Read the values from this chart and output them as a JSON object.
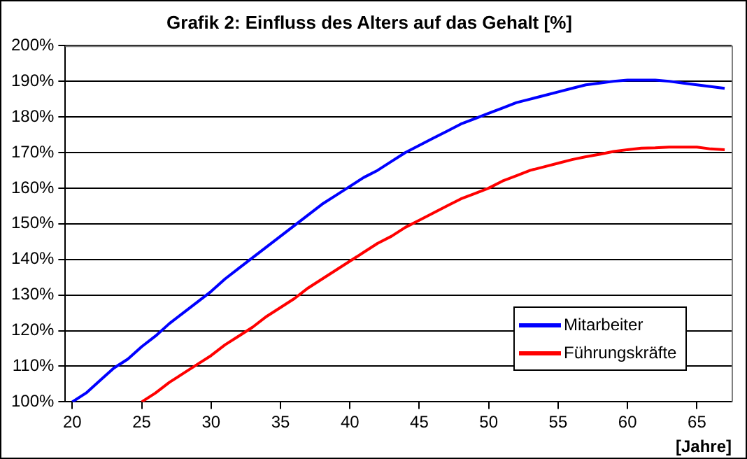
{
  "chart_data": {
    "type": "line",
    "title": "Grafik 2: Einfluss des Alters auf das Gehalt [%]",
    "xlabel": "[Jahre]",
    "x": [
      20,
      21,
      22,
      23,
      24,
      25,
      26,
      27,
      28,
      29,
      30,
      31,
      32,
      33,
      34,
      35,
      36,
      37,
      38,
      39,
      40,
      41,
      42,
      43,
      44,
      45,
      46,
      47,
      48,
      49,
      50,
      51,
      52,
      53,
      54,
      55,
      56,
      57,
      58,
      59,
      60,
      61,
      62,
      63,
      64,
      65,
      66,
      67
    ],
    "series": [
      {
        "name": "Mitarbeiter",
        "color": "#0000ff",
        "values": [
          100,
          102.5,
          106,
          109.5,
          112,
          115.5,
          118.5,
          122,
          125,
          128,
          131,
          134.5,
          137.5,
          140.5,
          143.5,
          146.5,
          149.5,
          152.5,
          155.5,
          158,
          160.5,
          163,
          165,
          167.5,
          170,
          172,
          174,
          176,
          178,
          179.5,
          181,
          182.5,
          184,
          185,
          186,
          187,
          188,
          189,
          189.5,
          190,
          190.3,
          190.3,
          190.3,
          190,
          189.5,
          189,
          188.5,
          188
        ]
      },
      {
        "name": "Führungskräfte",
        "color": "#ff0000",
        "values": [
          null,
          null,
          null,
          null,
          null,
          100,
          102.5,
          105.5,
          108,
          110.5,
          113,
          116,
          118.5,
          121,
          124,
          126.5,
          129,
          132,
          134.5,
          137,
          139.5,
          142,
          144.5,
          146.5,
          149,
          151,
          153,
          155,
          157,
          158.5,
          160,
          162,
          163.5,
          165,
          166,
          167,
          168,
          168.8,
          169.5,
          170.3,
          170.8,
          171.2,
          171.3,
          171.5,
          171.5,
          171.5,
          171,
          170.8
        ]
      }
    ],
    "xlim": [
      19.5,
      67.5
    ],
    "xticks": [
      20,
      25,
      30,
      35,
      40,
      45,
      50,
      55,
      60,
      65
    ],
    "ylim": [
      100,
      200
    ],
    "yticks": [
      {
        "value": 100,
        "label": "100%"
      },
      {
        "value": 110,
        "label": "110%"
      },
      {
        "value": 120,
        "label": "120%"
      },
      {
        "value": 130,
        "label": "130%"
      },
      {
        "value": 140,
        "label": "140%"
      },
      {
        "value": 150,
        "label": "150%"
      },
      {
        "value": 160,
        "label": "160%"
      },
      {
        "value": 170,
        "label": "170%"
      },
      {
        "value": 180,
        "label": "180%"
      },
      {
        "value": 190,
        "label": "190%"
      },
      {
        "value": 200,
        "label": "200%"
      }
    ],
    "grid": "y",
    "legend": "bottom right",
    "marker": "none",
    "line_style": "solid"
  }
}
